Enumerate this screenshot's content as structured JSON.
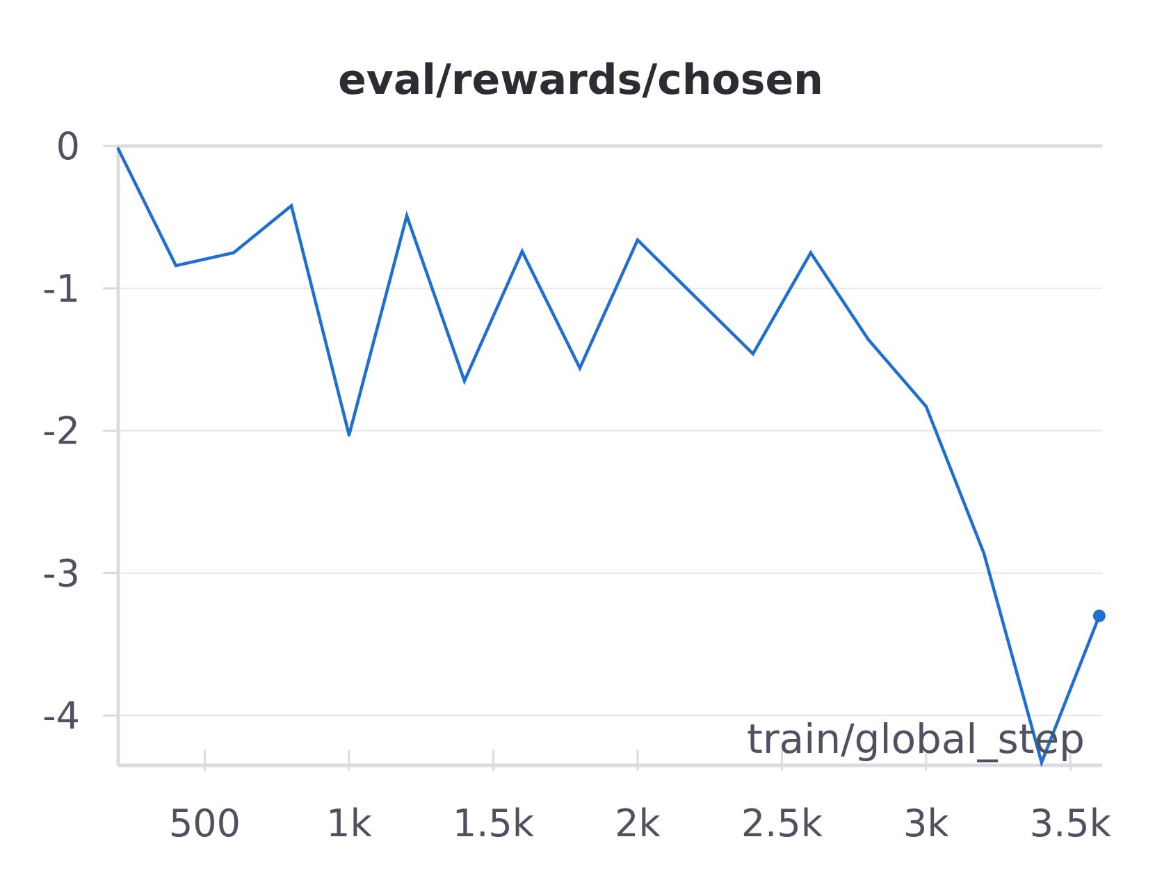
{
  "chart_data": {
    "type": "line",
    "title": "eval/rewards/chosen",
    "xlabel": "train/global_step",
    "ylabel": "",
    "xlim": [
      200,
      3610
    ],
    "ylim": [
      -4.35,
      0
    ],
    "x_ticks": [
      500,
      1000,
      1500,
      2000,
      2500,
      3000,
      3500
    ],
    "x_tick_labels": [
      "500",
      "1k",
      "1.5k",
      "2k",
      "2.5k",
      "3k",
      "3.5k"
    ],
    "y_ticks": [
      0,
      -1,
      -2,
      -3,
      -4
    ],
    "y_tick_labels": [
      "0",
      "-1",
      "-2",
      "-3",
      "-4"
    ],
    "grid": true,
    "legend": "none",
    "series": [
      {
        "color": "#1f6fd1",
        "x": [
          200,
          400,
          600,
          800,
          1000,
          1200,
          1400,
          1600,
          1800,
          2000,
          2200,
          2400,
          2600,
          2800,
          3000,
          3200,
          3400,
          3600
        ],
        "y": [
          -0.02,
          -0.84,
          -0.75,
          -0.42,
          -2.03,
          -0.49,
          -1.65,
          -0.74,
          -1.56,
          -0.66,
          -1.06,
          -1.46,
          -0.75,
          -1.36,
          -1.83,
          -2.86,
          -4.33,
          -3.3
        ]
      }
    ]
  }
}
